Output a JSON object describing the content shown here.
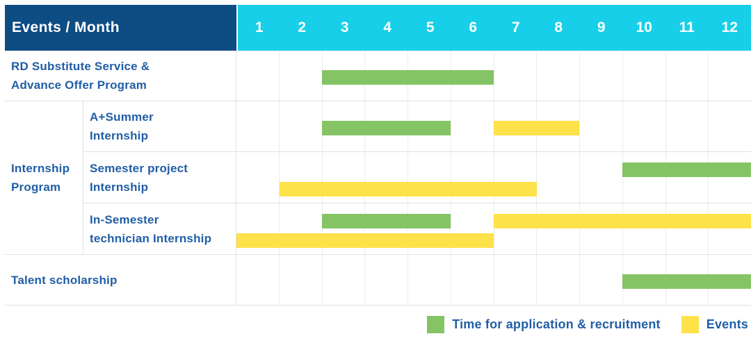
{
  "header": {
    "title": "Events / Month",
    "months": [
      "1",
      "2",
      "3",
      "4",
      "5",
      "6",
      "7",
      "8",
      "9",
      "10",
      "11",
      "12"
    ]
  },
  "colors": {
    "header-bg": "#0e4c84",
    "months-bg": "#17cfe9",
    "header-text": "#ffffff",
    "label-text": "#205ea6",
    "green": "#84c464",
    "yellow": "#fde24a",
    "grid": "#ececec",
    "border": "#e0e0e0"
  },
  "rows": {
    "rd": {
      "lines": [
        "RD Substitute Service &",
        "Advance Offer Program"
      ]
    },
    "group": {
      "lines": [
        "Internship",
        "Program"
      ]
    },
    "summer": {
      "lines": [
        "A+Summer",
        "Internship"
      ]
    },
    "semester": {
      "lines": [
        "Semester project",
        "Internship"
      ]
    },
    "technician": {
      "lines": [
        "In-Semester",
        "technician Internship"
      ]
    },
    "talent": {
      "lines": [
        "Talent scholarship"
      ]
    }
  },
  "legend": {
    "items": [
      {
        "key": "green",
        "label": "Time for application & recruitment"
      },
      {
        "key": "yellow",
        "label": "Events"
      }
    ]
  },
  "chart_data": {
    "type": "bar",
    "variant": "gantt",
    "title": "Events / Month",
    "x": {
      "label": "Month",
      "ticks": [
        1,
        2,
        3,
        4,
        5,
        6,
        7,
        8,
        9,
        10,
        11,
        12
      ],
      "range": [
        1,
        12
      ]
    },
    "grid": true,
    "legend_position": "bottom-right",
    "legend": [
      {
        "series_key": "application",
        "label": "Time for application & recruitment",
        "color": "#84c464"
      },
      {
        "series_key": "event",
        "label": "Events",
        "color": "#fde24a"
      }
    ],
    "tasks": [
      {
        "id": "rd",
        "label": "RD Substitute Service & Advance Offer Program",
        "group": null,
        "lanes": 1,
        "bars": [
          {
            "series": "application",
            "start_month": 3,
            "end_month": 6,
            "lane": 1
          }
        ]
      },
      {
        "id": "summer",
        "label": "A+Summer Internship",
        "group": "Internship Program",
        "lanes": 1,
        "bars": [
          {
            "series": "application",
            "start_month": 3,
            "end_month": 5,
            "lane": 1
          },
          {
            "series": "event",
            "start_month": 7,
            "end_month": 8,
            "lane": 1
          }
        ]
      },
      {
        "id": "semester",
        "label": "Semester project Internship",
        "group": "Internship Program",
        "lanes": 2,
        "bars": [
          {
            "series": "application",
            "start_month": 10,
            "end_month": 12,
            "lane": 1
          },
          {
            "series": "event",
            "start_month": 2,
            "end_month": 7,
            "lane": 2
          }
        ]
      },
      {
        "id": "technician",
        "label": "In-Semester technician Internship",
        "group": "Internship Program",
        "lanes": 2,
        "bars": [
          {
            "series": "application",
            "start_month": 3,
            "end_month": 5,
            "lane": 1
          },
          {
            "series": "event",
            "start_month": 7,
            "end_month": 12,
            "lane": 1
          },
          {
            "series": "event",
            "start_month": 1,
            "end_month": 6,
            "lane": 2
          }
        ]
      },
      {
        "id": "talent",
        "label": "Talent scholarship",
        "group": null,
        "lanes": 1,
        "bars": [
          {
            "series": "application",
            "start_month": 10,
            "end_month": 12,
            "lane": 1
          }
        ]
      }
    ]
  }
}
